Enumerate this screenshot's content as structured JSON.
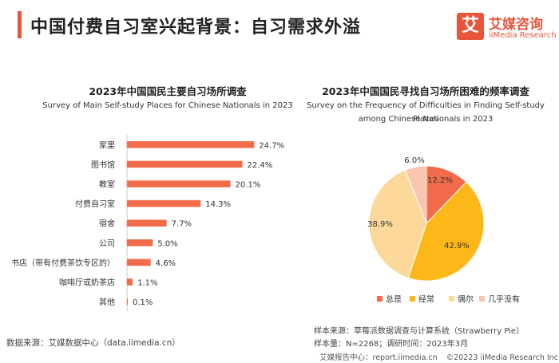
{
  "header": {
    "title": "中国付费自习室兴起背景：自习需求外溢",
    "logo_mark": "艾",
    "logo_cn": "艾媒咨询",
    "logo_en": "iiMedia Research"
  },
  "colors": {
    "accent": "#e8553b",
    "bar": "#f26b4a",
    "pie": [
      "#f26b4a",
      "#fcb818",
      "#fcd99b",
      "#f9c6b0"
    ]
  },
  "chart_data": [
    {
      "type": "bar",
      "orientation": "horizontal",
      "title": "2023年中国国民主要自习场所调查",
      "subtitle": "Survey of Main Self-study Places for Chinese Nationals in 2023",
      "categories": [
        "家里",
        "图书馆",
        "教室",
        "付费自习室",
        "宿舍",
        "公司",
        "书店（带有付费茶饮专区的）",
        "咖啡厅或奶茶店",
        "其他"
      ],
      "values": [
        24.7,
        22.4,
        20.1,
        14.3,
        7.7,
        5.0,
        4.6,
        1.1,
        0.1
      ],
      "labels": [
        "24.7%",
        "22.4%",
        "20.1%",
        "14.3%",
        "7.7%",
        "5.0%",
        "4.6%",
        "1.1%",
        "0.1%"
      ],
      "xlim": [
        0,
        30
      ]
    },
    {
      "type": "pie",
      "title": "2023年中国国民寻找自习场所困难的频率调查",
      "subtitle_line1": "Survey on the Frequency of Difficulties in Finding Self-study Places",
      "subtitle_line2": "among Chinese Nationals in 2023",
      "categories": [
        "总是",
        "经常",
        "偶尔",
        "几乎没有"
      ],
      "values": [
        12.2,
        42.9,
        38.9,
        6.0
      ],
      "labels": [
        "12.2%",
        "42.9%",
        "38.9%",
        "6.0%"
      ],
      "legend_position": "bottom"
    }
  ],
  "footer": {
    "source_left": "数据来源：艾媒数据中心（data.iimedia.cn）",
    "sample_source": "样本来源：草莓派数据调查与计算系统（Strawberry Pie）",
    "sample_size": "样本量：N=2268；调研时间：2023年3月",
    "report_center": "艾媒报告中心：report.iimedia.cn",
    "copyright": "©20223  iiMedia Research  Inc"
  }
}
